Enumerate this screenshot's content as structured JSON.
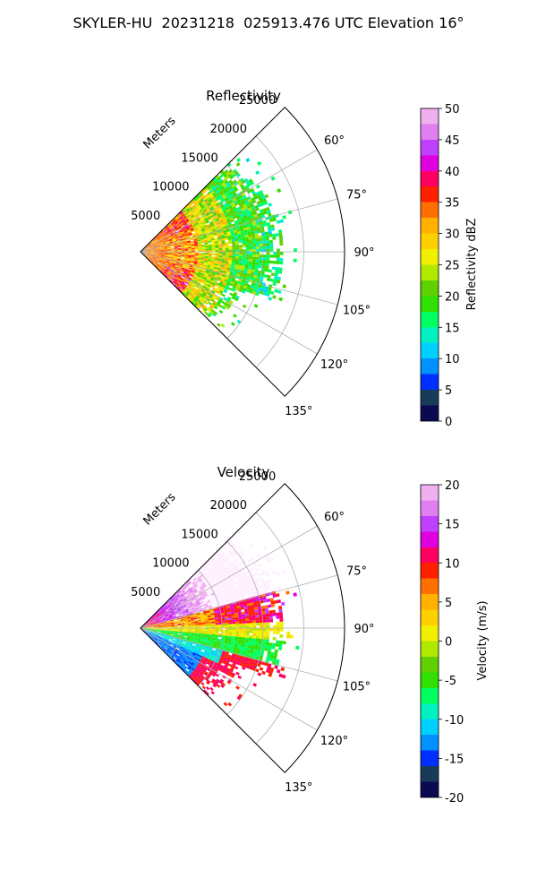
{
  "figure": {
    "title": "SKYLER-HU  20231218  025913.476 UTC Elevation 16°"
  },
  "chart_data": [
    {
      "type": "heatmap",
      "subtype": "polar-sector (radar PPI)",
      "title": "Reflectivity",
      "radial_axis_label": "Meters",
      "radial_ticks": [
        5000,
        10000,
        15000,
        20000,
        25000
      ],
      "radial_range": [
        0,
        25000
      ],
      "azimuth_ticks_deg": [
        60,
        75,
        90,
        105,
        120,
        135
      ],
      "azimuth_tick_labels": [
        "60°",
        "75°",
        "90°",
        "105°",
        "120°",
        "135°"
      ],
      "azimuth_range_deg": [
        45,
        135
      ],
      "grid": true,
      "colorbar": {
        "label": "Reflectivity dBZ",
        "range": [
          0,
          50
        ],
        "ticks": [
          0,
          5,
          10,
          15,
          20,
          25,
          30,
          35,
          40,
          45,
          50
        ],
        "stops": [
          [
            0,
            "#0a0a50"
          ],
          [
            2.5,
            "#1a3a5a"
          ],
          [
            5,
            "#0030ff"
          ],
          [
            7.5,
            "#0090ff"
          ],
          [
            10,
            "#00d0ff"
          ],
          [
            12.5,
            "#00f0c0"
          ],
          [
            15,
            "#00ff60"
          ],
          [
            17.5,
            "#30e000"
          ],
          [
            20,
            "#60d000"
          ],
          [
            22.5,
            "#b0e800"
          ],
          [
            25,
            "#f0f000"
          ],
          [
            27.5,
            "#ffd000"
          ],
          [
            30,
            "#ffb000"
          ],
          [
            32.5,
            "#ff7000"
          ],
          [
            35,
            "#ff2000"
          ],
          [
            37.5,
            "#ff0060"
          ],
          [
            40,
            "#e000e0"
          ],
          [
            42.5,
            "#c040ff"
          ],
          [
            45,
            "#e080f0"
          ],
          [
            47.5,
            "#f0b0f0"
          ],
          [
            50,
            "#fff0ff"
          ]
        ]
      },
      "field_description": "Near-range sector filled with 25–38 dBZ (yellow/orange/red) out to ~13 km, transitioning to 15–22 dBZ (green) echoes out to ~17 km, sparse returns beyond."
    },
    {
      "type": "heatmap",
      "subtype": "polar-sector (radar PPI)",
      "title": "Velocity",
      "radial_axis_label": "Meters",
      "radial_ticks": [
        5000,
        10000,
        15000,
        20000,
        25000
      ],
      "radial_range": [
        0,
        25000
      ],
      "azimuth_ticks_deg": [
        60,
        75,
        90,
        105,
        120,
        135
      ],
      "azimuth_tick_labels": [
        "60°",
        "75°",
        "90°",
        "105°",
        "120°",
        "135°"
      ],
      "azimuth_range_deg": [
        45,
        135
      ],
      "grid": true,
      "colorbar": {
        "label": "Velocity (m/s)",
        "range": [
          -20,
          20
        ],
        "ticks": [
          -20,
          -15,
          -10,
          -5,
          0,
          5,
          10,
          15,
          20
        ],
        "stops": [
          [
            -20,
            "#0a0a50"
          ],
          [
            -18,
            "#1a3a5a"
          ],
          [
            -16,
            "#0030ff"
          ],
          [
            -14,
            "#0090ff"
          ],
          [
            -12,
            "#00d0ff"
          ],
          [
            -10,
            "#00f0c0"
          ],
          [
            -8,
            "#00ff60"
          ],
          [
            -6,
            "#30e000"
          ],
          [
            -4,
            "#60d000"
          ],
          [
            -2,
            "#b0e800"
          ],
          [
            0,
            "#f0f000"
          ],
          [
            2,
            "#ffd000"
          ],
          [
            4,
            "#ffb000"
          ],
          [
            6,
            "#ff7000"
          ],
          [
            8,
            "#ff2000"
          ],
          [
            10,
            "#ff0060"
          ],
          [
            12,
            "#e000e0"
          ],
          [
            14,
            "#c040ff"
          ],
          [
            16,
            "#e080f0"
          ],
          [
            18,
            "#f0b0f0"
          ],
          [
            20,
            "#fff0ff"
          ]
        ]
      },
      "field_description": "Positive velocities (orange/red/magenta, +5 to +15 m/s) on the left/northern part of sector, near zero (yellow) along ~90°, negative velocities (green/cyan, -5 to -12 m/s) toward 100–125°, with magenta/red patches near 120°."
    }
  ]
}
